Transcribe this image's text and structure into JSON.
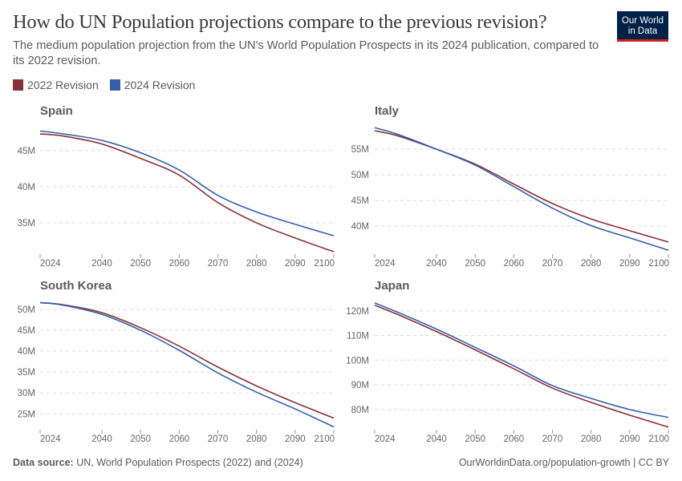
{
  "header": {
    "title": "How do UN Population projections compare to the previous revision?",
    "subtitle": "The medium population projection from the UN's World Population Prospects in its 2024 publication, compared to its 2022 revision.",
    "logo_text": "Our World in Data"
  },
  "legend": [
    {
      "label": "2022 Revision",
      "color": "#883039"
    },
    {
      "label": "2024 Revision",
      "color": "#3360a9"
    }
  ],
  "footer": {
    "source_label": "Data source:",
    "source_text": "UN, World Population Prospects (2022) and (2024)",
    "right_text": "OurWorldinData.org/population-growth | CC BY"
  },
  "chart_data": [
    {
      "type": "line",
      "title": "Spain",
      "x": [
        2024,
        2030,
        2040,
        2050,
        2060,
        2070,
        2080,
        2090,
        2100
      ],
      "xticks": [
        "2024",
        "2040",
        "2050",
        "2060",
        "2070",
        "2080",
        "2090",
        "2100"
      ],
      "yticks": [
        35,
        40,
        45
      ],
      "ytick_labels": [
        "35M",
        "40M",
        "45M"
      ],
      "ylim": [
        31,
        48.3
      ],
      "grid": "horizontal dashed",
      "series": [
        {
          "name": "2022 Revision",
          "values": [
            47.3,
            47.0,
            45.9,
            43.9,
            41.6,
            37.8,
            35.0,
            32.9,
            31.0
          ]
        },
        {
          "name": "2024 Revision",
          "values": [
            47.7,
            47.3,
            46.4,
            44.7,
            42.3,
            38.8,
            36.5,
            34.8,
            33.2
          ]
        }
      ]
    },
    {
      "type": "line",
      "title": "Italy",
      "x": [
        2024,
        2030,
        2040,
        2050,
        2060,
        2070,
        2080,
        2090,
        2100
      ],
      "xticks": [
        "2024",
        "2040",
        "2050",
        "2060",
        "2070",
        "2080",
        "2090",
        "2100"
      ],
      "yticks": [
        40,
        45,
        50,
        55
      ],
      "ytick_labels": [
        "40M",
        "45M",
        "50M",
        "55M"
      ],
      "ylim": [
        35,
        59.4
      ],
      "grid": "horizontal dashed",
      "series": [
        {
          "name": "2022 Revision",
          "values": [
            58.6,
            57.6,
            55.0,
            52.1,
            48.2,
            44.4,
            41.4,
            39.1,
            36.9
          ]
        },
        {
          "name": "2024 Revision",
          "values": [
            59.2,
            57.9,
            55.0,
            51.9,
            47.7,
            43.5,
            40.1,
            37.7,
            35.3
          ]
        }
      ]
    },
    {
      "type": "line",
      "title": "South Korea",
      "x": [
        2024,
        2030,
        2040,
        2050,
        2060,
        2070,
        2080,
        2090,
        2100
      ],
      "xticks": [
        "2024",
        "2040",
        "2050",
        "2060",
        "2070",
        "2080",
        "2090",
        "2100"
      ],
      "yticks": [
        25,
        30,
        35,
        40,
        45,
        50
      ],
      "ytick_labels": [
        "25M",
        "30M",
        "35M",
        "40M",
        "45M",
        "50M"
      ],
      "ylim": [
        21.8,
        51.7
      ],
      "grid": "horizontal dashed",
      "series": [
        {
          "name": "2022 Revision",
          "values": [
            51.6,
            51.1,
            49.2,
            45.6,
            41.2,
            36.2,
            31.7,
            27.7,
            24.0
          ]
        },
        {
          "name": "2024 Revision",
          "values": [
            51.6,
            51.0,
            48.8,
            45.0,
            40.2,
            34.8,
            30.2,
            26.2,
            21.9
          ]
        }
      ]
    },
    {
      "type": "line",
      "title": "Japan",
      "x": [
        2024,
        2030,
        2040,
        2050,
        2060,
        2070,
        2080,
        2090,
        2100
      ],
      "xticks": [
        "2024",
        "2040",
        "2050",
        "2060",
        "2070",
        "2080",
        "2090",
        "2100"
      ],
      "yticks": [
        80,
        90,
        100,
        110,
        120
      ],
      "ytick_labels": [
        "80M",
        "90M",
        "100M",
        "110M",
        "120M"
      ],
      "ylim": [
        72.8,
        123.5
      ],
      "grid": "horizontal dashed",
      "series": [
        {
          "name": "2022 Revision",
          "values": [
            122.3,
            118.5,
            111.6,
            104.2,
            96.5,
            88.7,
            82.9,
            77.7,
            72.9
          ]
        },
        {
          "name": "2024 Revision",
          "values": [
            123.2,
            119.4,
            112.6,
            105.2,
            97.7,
            89.7,
            84.5,
            80.0,
            76.8
          ]
        }
      ]
    }
  ]
}
